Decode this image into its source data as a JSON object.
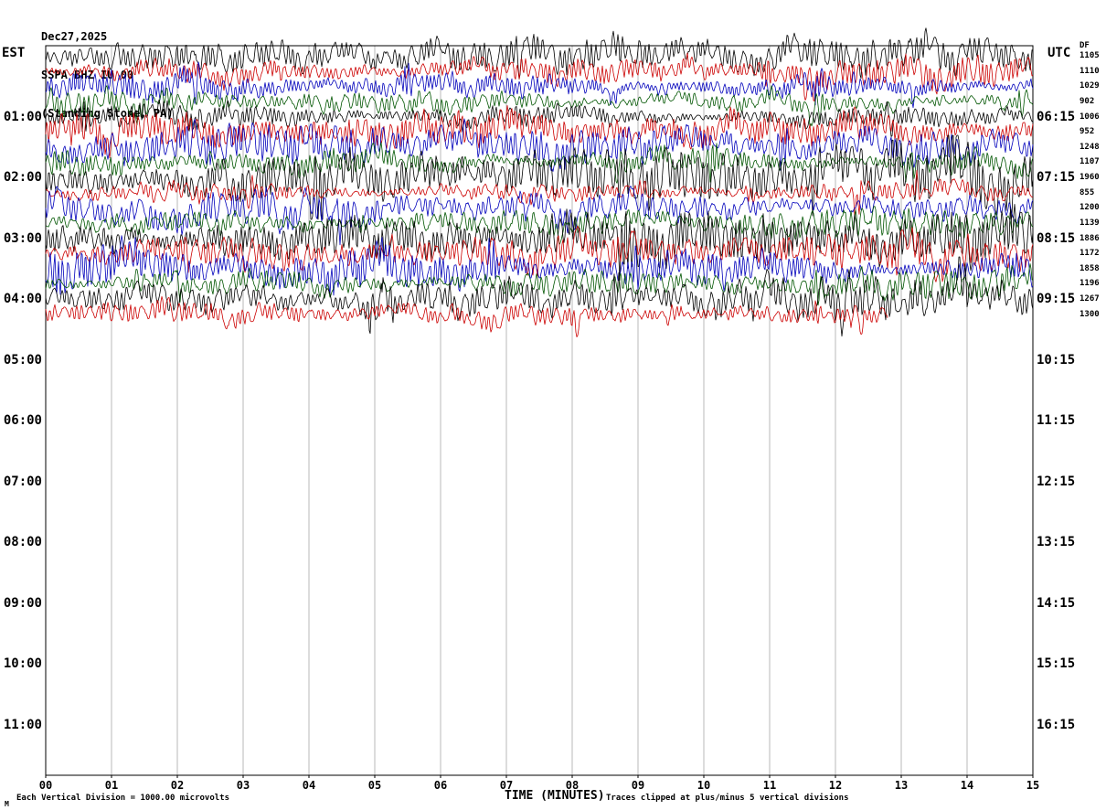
{
  "header": {
    "date": "Dec27,2025",
    "station": "SSPA BHZ IU 00",
    "location": "(Standing Stone, PA)"
  },
  "axes": {
    "left_title": "EST",
    "right_title": "UTC",
    "left_labels": [
      "01:00",
      "02:00",
      "03:00",
      "04:00",
      "05:00",
      "06:00",
      "07:00",
      "08:00",
      "09:00",
      "10:00",
      "11:00"
    ],
    "right_labels": [
      "06:15",
      "07:15",
      "08:15",
      "09:15",
      "10:15",
      "11:15",
      "12:15",
      "13:15",
      "14:15",
      "15:15",
      "16:15"
    ],
    "x_tick_labels": [
      "00",
      "01",
      "02",
      "03",
      "04",
      "05",
      "06",
      "07",
      "08",
      "09",
      "10",
      "11",
      "12",
      "13",
      "14",
      "15"
    ],
    "x_axis_label": "TIME (MINUTES)"
  },
  "right_column": {
    "header": "DF",
    "values": [
      1105,
      1110,
      1029,
      902,
      1006,
      952,
      1248,
      1107,
      1960,
      855,
      1200,
      1139,
      1886,
      1172,
      1858,
      1196,
      1267,
      1300
    ]
  },
  "footer": {
    "scale_note": "Each Vertical Division = 1000.00 microvolts",
    "clip_note": "Traces clipped at plus/minus 5 vertical divisions",
    "corner_mark": "M"
  },
  "chart_data": {
    "type": "line",
    "title": "SSPA BHZ IU 00 (Standing Stone, PA) helicorder, Dec27,2025",
    "xlabel": "TIME (MINUTES)",
    "x_range_minutes": [
      0,
      15
    ],
    "minutes_per_row": 15,
    "rows_per_hour": 4,
    "row_spacing_px": 16.625,
    "trace_colors": [
      "#000000",
      "#cc0000",
      "#0000bb",
      "#005500"
    ],
    "clip_divisions": 5,
    "microvolts_per_division": 1000,
    "active_rows": 18,
    "last_row_end_minute": 12.8,
    "grid": true,
    "rows": [
      {
        "est_start": "00:00",
        "color": "black",
        "amplitude_uv": 1105
      },
      {
        "est_start": "00:15",
        "color": "red",
        "amplitude_uv": 1110
      },
      {
        "est_start": "00:30",
        "color": "blue",
        "amplitude_uv": 1029
      },
      {
        "est_start": "00:45",
        "color": "green",
        "amplitude_uv": 902
      },
      {
        "est_start": "01:00",
        "color": "black",
        "amplitude_uv": 1006
      },
      {
        "est_start": "01:15",
        "color": "red",
        "amplitude_uv": 952
      },
      {
        "est_start": "01:30",
        "color": "blue",
        "amplitude_uv": 1248
      },
      {
        "est_start": "01:45",
        "color": "green",
        "amplitude_uv": 1107
      },
      {
        "est_start": "02:00",
        "color": "black",
        "amplitude_uv": 1960
      },
      {
        "est_start": "02:15",
        "color": "red",
        "amplitude_uv": 855
      },
      {
        "est_start": "02:30",
        "color": "blue",
        "amplitude_uv": 1200
      },
      {
        "est_start": "02:45",
        "color": "green",
        "amplitude_uv": 1139
      },
      {
        "est_start": "03:00",
        "color": "black",
        "amplitude_uv": 1886
      },
      {
        "est_start": "03:15",
        "color": "red",
        "amplitude_uv": 1172
      },
      {
        "est_start": "03:30",
        "color": "blue",
        "amplitude_uv": 1858
      },
      {
        "est_start": "03:45",
        "color": "green",
        "amplitude_uv": 1196
      },
      {
        "est_start": "04:00",
        "color": "black",
        "amplitude_uv": 1267
      },
      {
        "est_start": "04:15",
        "color": "red",
        "amplitude_uv": 1300
      }
    ]
  }
}
